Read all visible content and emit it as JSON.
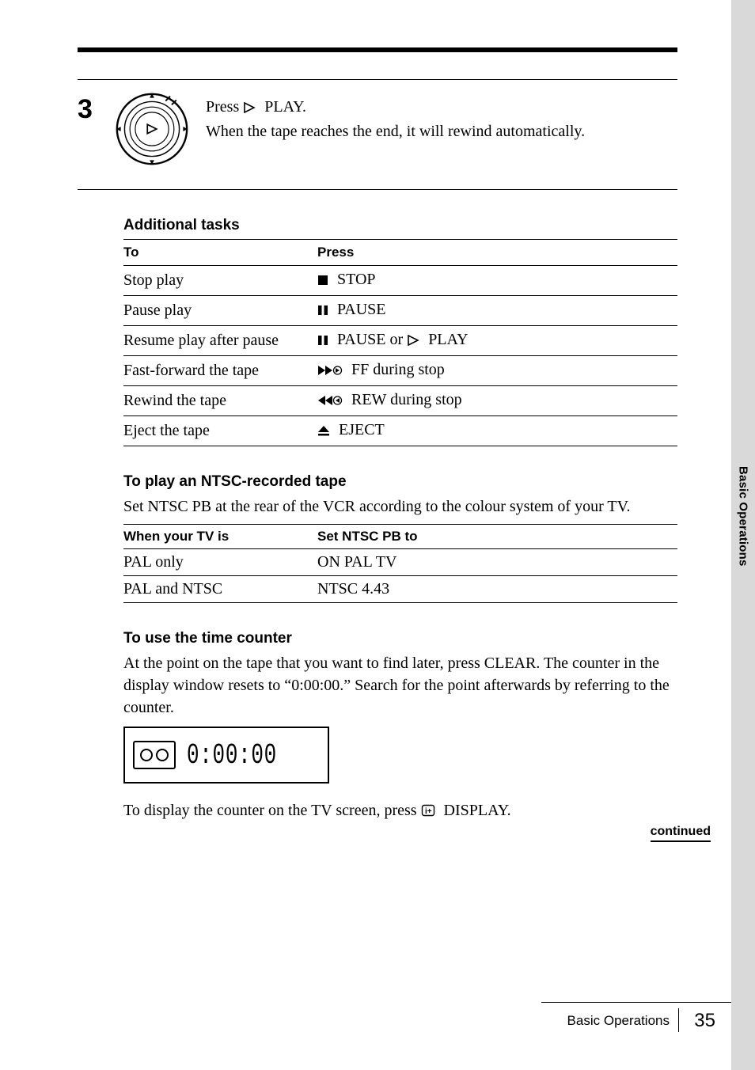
{
  "step": {
    "number": "3",
    "line1_prefix": "Press ",
    "line1_suffix": " PLAY.",
    "line2": "When the tape reaches the end, it will rewind automatically."
  },
  "additional": {
    "heading": "Additional tasks",
    "col_to": "To",
    "col_press": "Press",
    "rows": [
      {
        "to": "Stop play",
        "press": " STOP",
        "icon": "stop"
      },
      {
        "to": "Pause play",
        "press": " PAUSE",
        "icon": "pause"
      },
      {
        "to": "Resume play after pause",
        "press": " PAUSE or ",
        "icon": "pause",
        "extra_icon": "play",
        "extra_text": " PLAY"
      },
      {
        "to": "Fast-forward the tape",
        "press": " FF during stop",
        "icon": "ff"
      },
      {
        "to": "Rewind the tape",
        "press": " REW during  stop",
        "icon": "rew"
      },
      {
        "to": "Eject the tape",
        "press": " EJECT",
        "icon": "eject"
      }
    ]
  },
  "ntsc": {
    "heading": "To play an NTSC-recorded tape",
    "body": "Set NTSC PB at the rear of the VCR according to the colour system of your TV.",
    "col_when": "When your TV is",
    "col_set": "Set NTSC PB to",
    "rows": [
      {
        "when": "PAL only",
        "set": "ON PAL TV"
      },
      {
        "when": "PAL and NTSC",
        "set": "NTSC 4.43"
      }
    ]
  },
  "counter": {
    "heading": "To use the time counter",
    "body": "At the point on the tape that you want to find later, press CLEAR. The counter in the display window resets to “0:00:00.” Search for the point afterwards by referring to the counter.",
    "digits": "0:00:00",
    "after_prefix": "To display the counter on the TV screen, press ",
    "after_suffix": " DISPLAY."
  },
  "side_tab": "Basic Operations",
  "continued": "continued",
  "footer": {
    "section": "Basic Operations",
    "page": "35"
  },
  "colors": {
    "gray": "#d9d9d9",
    "black": "#000000",
    "white": "#ffffff"
  }
}
